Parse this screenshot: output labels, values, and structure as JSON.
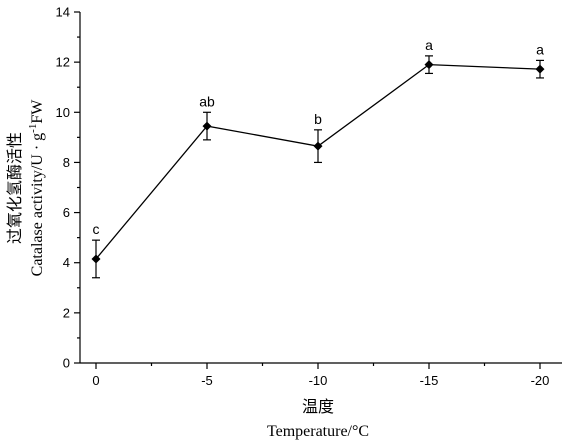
{
  "chart_data": {
    "type": "line",
    "x_categories": [
      "0",
      "-5",
      "-10",
      "-15",
      "-20"
    ],
    "values": [
      4.15,
      9.45,
      8.65,
      11.9,
      11.72
    ],
    "errors": [
      0.75,
      0.55,
      0.65,
      0.35,
      0.35
    ],
    "significance_labels": [
      "c",
      "ab",
      "b",
      "a",
      "a"
    ],
    "ylim": [
      0,
      14
    ],
    "y_ticks": [
      "0",
      "2",
      "4",
      "6",
      "8",
      "10",
      "12",
      "14"
    ],
    "xlabel_cn": "温度",
    "xlabel": "Temperature/°C",
    "ylabel_cn": "过氧化氢酶活性",
    "ylabel_main": "Catalase activity/U · g",
    "ylabel_sup": "-1",
    "ylabel_tail": "FW",
    "grid": false,
    "legend": "none",
    "series_color": "#000000"
  }
}
